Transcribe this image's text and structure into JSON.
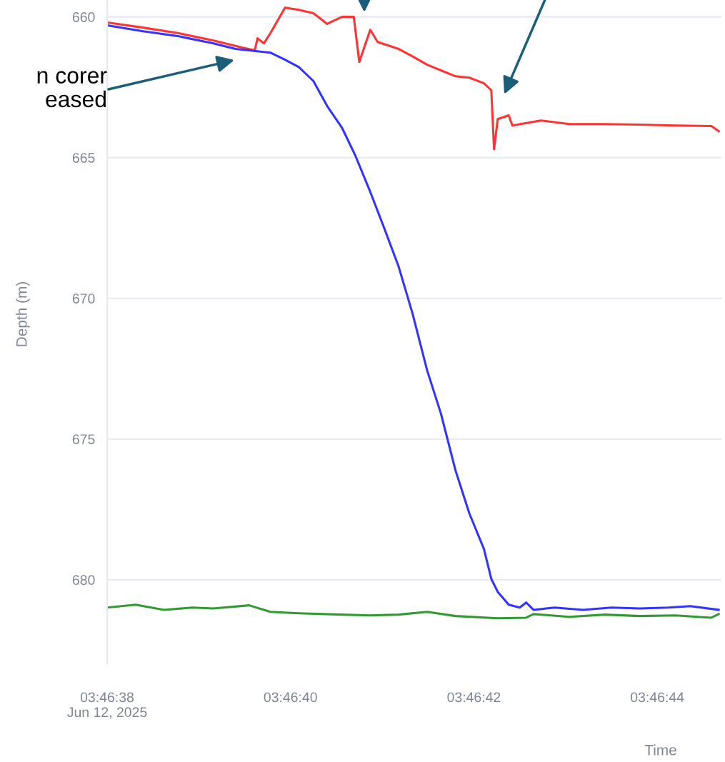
{
  "chart_data": {
    "type": "line",
    "xlabel": "Time",
    "ylabel": "Depth (m)",
    "xlim": [
      "2025-06-12T03:46:38",
      "2025-06-12T03:46:44.7"
    ],
    "ylim": [
      683,
      659.4
    ],
    "xticks": [
      {
        "value": "2025-06-12T03:46:38",
        "label": "03:46:38\nJun 12, 2025"
      },
      {
        "value": "2025-06-12T03:46:40",
        "label": "03:46:40"
      },
      {
        "value": "2025-06-12T03:46:42",
        "label": "03:46:42"
      },
      {
        "value": "2025-06-12T03:46:44",
        "label": "03:46:44"
      }
    ],
    "yticks": [
      660,
      665,
      670,
      675,
      680
    ],
    "grid": "y",
    "legend": false,
    "tick_labels": true,
    "annotations": [
      "n corer\neased"
    ],
    "series": [
      {
        "color": "#ff3333",
        "x": [
          "2025-06-12T03:46:38.00",
          "2025-06-12T03:46:38.39",
          "2025-06-12T03:46:38.78",
          "2025-06-12T03:46:39.16",
          "2025-06-12T03:46:39.47",
          "2025-06-12T03:46:39.61",
          "2025-06-12T03:46:39.64",
          "2025-06-12T03:46:39.71",
          "2025-06-12T03:46:39.78",
          "2025-06-12T03:46:39.94",
          "2025-06-12T03:46:40.09",
          "2025-06-12T03:46:40.25",
          "2025-06-12T03:46:40.40",
          "2025-06-12T03:46:40.56",
          "2025-06-12T03:46:40.69",
          "2025-06-12T03:46:40.75",
          "2025-06-12T03:46:40.87",
          "2025-06-12T03:46:40.95",
          "2025-06-12T03:46:41.18",
          "2025-06-12T03:46:41.33",
          "2025-06-12T03:46:41.49",
          "2025-06-12T03:46:41.64",
          "2025-06-12T03:46:41.80",
          "2025-06-12T03:46:41.95",
          "2025-06-12T03:46:42.11",
          "2025-06-12T03:46:42.19",
          "2025-06-12T03:46:42.22",
          "2025-06-12T03:46:42.26",
          "2025-06-12T03:46:42.38",
          "2025-06-12T03:46:42.42",
          "2025-06-12T03:46:42.73",
          "2025-06-12T03:46:43.04",
          "2025-06-12T03:46:43.43",
          "2025-06-12T03:46:43.81",
          "2025-06-12T03:46:44.20",
          "2025-06-12T03:46:44.59",
          "2025-06-12T03:46:44.67"
        ],
        "values": [
          660.2,
          660.38,
          660.58,
          660.84,
          661.09,
          661.19,
          660.76,
          660.94,
          660.58,
          659.67,
          659.75,
          659.87,
          660.25,
          660.0,
          660.0,
          661.6,
          660.46,
          660.89,
          661.14,
          661.4,
          661.7,
          661.9,
          662.11,
          662.16,
          662.36,
          662.61,
          664.7,
          663.63,
          663.5,
          663.86,
          663.68,
          663.81,
          663.81,
          663.83,
          663.86,
          663.88,
          664.06
        ]
      },
      {
        "color": "#3333ff",
        "x": [
          "2025-06-12T03:46:38.00",
          "2025-06-12T03:46:38.39",
          "2025-06-12T03:46:38.78",
          "2025-06-12T03:46:39.16",
          "2025-06-12T03:46:39.40",
          "2025-06-12T03:46:39.78",
          "2025-06-12T03:46:39.94",
          "2025-06-12T03:46:40.09",
          "2025-06-12T03:46:40.25",
          "2025-06-12T03:46:40.40",
          "2025-06-12T03:46:40.56",
          "2025-06-12T03:46:40.71",
          "2025-06-12T03:46:40.87",
          "2025-06-12T03:46:41.02",
          "2025-06-12T03:46:41.18",
          "2025-06-12T03:46:41.33",
          "2025-06-12T03:46:41.49",
          "2025-06-12T03:46:41.64",
          "2025-06-12T03:46:41.80",
          "2025-06-12T03:46:41.95",
          "2025-06-12T03:46:42.11",
          "2025-06-12T03:46:42.19",
          "2025-06-12T03:46:42.26",
          "2025-06-12T03:46:42.38",
          "2025-06-12T03:46:42.50",
          "2025-06-12T03:46:42.57",
          "2025-06-12T03:46:42.65",
          "2025-06-12T03:46:42.88",
          "2025-06-12T03:46:43.19",
          "2025-06-12T03:46:43.50",
          "2025-06-12T03:46:43.81",
          "2025-06-12T03:46:44.12",
          "2025-06-12T03:46:44.36",
          "2025-06-12T03:46:44.67"
        ],
        "values": [
          660.3,
          660.51,
          660.69,
          660.94,
          661.14,
          661.27,
          661.52,
          661.78,
          662.28,
          663.17,
          663.93,
          664.95,
          666.22,
          667.49,
          668.88,
          670.53,
          672.56,
          674.09,
          676.12,
          677.64,
          678.91,
          679.97,
          680.43,
          680.89,
          680.99,
          680.81,
          681.07,
          680.99,
          681.07,
          680.99,
          681.02,
          680.99,
          680.94,
          681.07
        ]
      },
      {
        "color": "#339933",
        "x": [
          "2025-06-12T03:46:38.00",
          "2025-06-12T03:46:38.31",
          "2025-06-12T03:46:38.62",
          "2025-06-12T03:46:38.93",
          "2025-06-12T03:46:39.16",
          "2025-06-12T03:46:39.55",
          "2025-06-12T03:46:39.78",
          "2025-06-12T03:46:40.09",
          "2025-06-12T03:46:40.56",
          "2025-06-12T03:46:40.87",
          "2025-06-12T03:46:41.18",
          "2025-06-12T03:46:41.49",
          "2025-06-12T03:46:41.80",
          "2025-06-12T03:46:42.26",
          "2025-06-12T03:46:42.57",
          "2025-06-12T03:46:42.65",
          "2025-06-12T03:46:43.04",
          "2025-06-12T03:46:43.43",
          "2025-06-12T03:46:43.81",
          "2025-06-12T03:46:44.20",
          "2025-06-12T03:46:44.59",
          "2025-06-12T03:46:44.67"
        ],
        "values": [
          680.99,
          680.89,
          681.07,
          680.99,
          681.02,
          680.91,
          681.14,
          681.19,
          681.24,
          681.27,
          681.24,
          681.14,
          681.29,
          681.37,
          681.35,
          681.22,
          681.32,
          681.24,
          681.29,
          681.27,
          681.35,
          681.22
        ]
      }
    ]
  }
}
